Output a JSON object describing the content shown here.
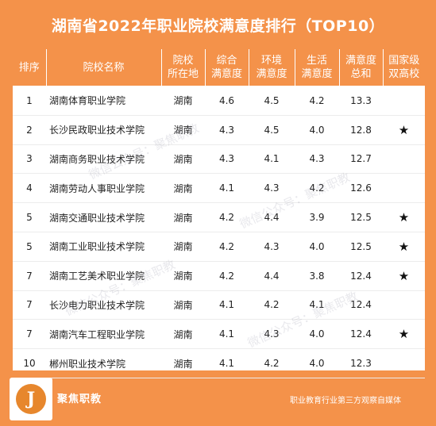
{
  "title": "湖南省2022年职业院校满意度排行（TOP10）",
  "table": {
    "headers": {
      "rank": "排序",
      "school": "院校名称",
      "location": [
        "院校",
        "所在地"
      ],
      "overall": [
        "综合",
        "满意度"
      ],
      "environment": [
        "环境",
        "满意度"
      ],
      "life": [
        "生活",
        "满意度"
      ],
      "total": [
        "满意度",
        "总和"
      ],
      "double_high": [
        "国家级",
        "双高校"
      ]
    },
    "rows": [
      {
        "rank": "1",
        "school": "湖南体育职业学院",
        "location": "湖南",
        "overall": "4.6",
        "environment": "4.5",
        "life": "4.2",
        "total": "13.3",
        "double_high": ""
      },
      {
        "rank": "2",
        "school": "长沙民政职业技术学院",
        "location": "湖南",
        "overall": "4.3",
        "environment": "4.5",
        "life": "4.0",
        "total": "12.8",
        "double_high": "★"
      },
      {
        "rank": "3",
        "school": "湖南商务职业技术学院",
        "location": "湖南",
        "overall": "4.3",
        "environment": "4.1",
        "life": "4.3",
        "total": "12.7",
        "double_high": ""
      },
      {
        "rank": "4",
        "school": "湖南劳动人事职业学院",
        "location": "湖南",
        "overall": "4.1",
        "environment": "4.3",
        "life": "4.2",
        "total": "12.6",
        "double_high": ""
      },
      {
        "rank": "5",
        "school": "湖南交通职业技术学院",
        "location": "湖南",
        "overall": "4.2",
        "environment": "4.4",
        "life": "3.9",
        "total": "12.5",
        "double_high": "★"
      },
      {
        "rank": "5",
        "school": "湖南工业职业技术学院",
        "location": "湖南",
        "overall": "4.2",
        "environment": "4.3",
        "life": "4.0",
        "total": "12.5",
        "double_high": "★"
      },
      {
        "rank": "7",
        "school": "湖南工艺美术职业学院",
        "location": "湖南",
        "overall": "4.2",
        "environment": "4.4",
        "life": "3.8",
        "total": "12.4",
        "double_high": "★"
      },
      {
        "rank": "7",
        "school": "长沙电力职业技术学院",
        "location": "湖南",
        "overall": "4.1",
        "environment": "4.2",
        "life": "4.1",
        "total": "12.4",
        "double_high": ""
      },
      {
        "rank": "7",
        "school": "湖南汽车工程职业学院",
        "location": "湖南",
        "overall": "4.1",
        "environment": "4.3",
        "life": "4.0",
        "total": "12.4",
        "double_high": "★"
      },
      {
        "rank": "10",
        "school": "郴州职业技术学院",
        "location": "湖南",
        "overall": "4.1",
        "environment": "4.2",
        "life": "4.0",
        "total": "12.3",
        "double_high": ""
      }
    ]
  },
  "watermark": "微信公众号：聚焦职教",
  "footer": {
    "logo_letter": "J",
    "brand": "聚焦职教",
    "tagline": "职业教育行业第三方观察自媒体"
  },
  "colors": {
    "accent": "#f4924a",
    "logo_ring": "#e7872d"
  },
  "icons": {
    "double_high_marker": "star-icon",
    "logo": "brand-logo-icon"
  }
}
